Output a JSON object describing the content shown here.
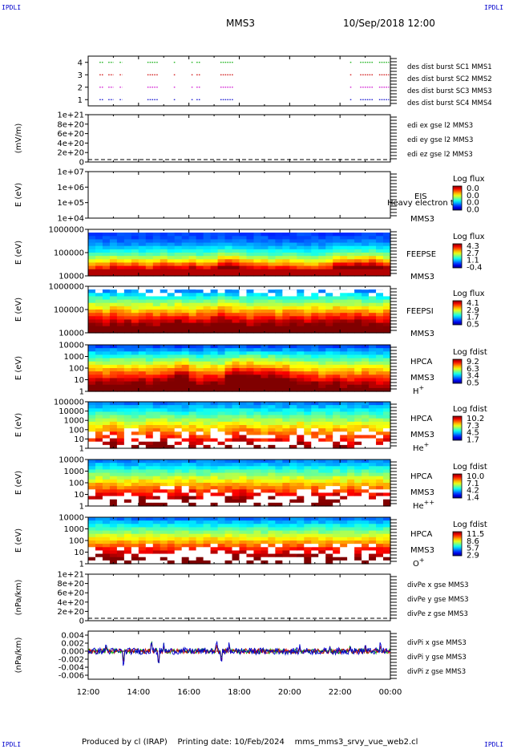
{
  "corner_label": "IPDLI",
  "header": {
    "mission": "MMS3",
    "datetime": "10/Sep/2018 12:00"
  },
  "footer": {
    "produced_by": "Produced by cl (IRAP)",
    "printing_date": "Printing date: 10/Feb/2024",
    "filename": "mms_mms3_srvy_vue_web2.cl"
  },
  "time_axis": {
    "range_hours": [
      12,
      24
    ],
    "tick_labels": [
      "12:00",
      "14:00",
      "16:00",
      "18:00",
      "20:00",
      "22:00",
      "00:00"
    ]
  },
  "colorbars": {
    "eis": {
      "title": "Log flux",
      "ticks": [
        "0.0",
        "0.0",
        "0.0",
        "0.0"
      ]
    },
    "feepse": {
      "title": "Log flux",
      "ticks": [
        "4.3",
        "2.7",
        "1.1",
        "-0.4"
      ]
    },
    "feepsi": {
      "title": "Log flux",
      "ticks": [
        "4.1",
        "2.9",
        "1.7",
        "0.5"
      ]
    },
    "hpca_h": {
      "title": "Log fdist",
      "ticks": [
        "9.2",
        "6.3",
        "3.4",
        "0.5"
      ]
    },
    "hpca_he": {
      "title": "Log fdist",
      "ticks": [
        "10.2",
        "7.3",
        "4.5",
        "1.7"
      ]
    },
    "hpca_hepp": {
      "title": "Log fdist",
      "ticks": [
        "10.0",
        "7.1",
        "4.2",
        "1.4"
      ]
    },
    "hpca_o": {
      "title": "Log fdist",
      "ticks": [
        "11.5",
        "8.6",
        "5.7",
        "2.9"
      ]
    }
  },
  "chart_data": [
    {
      "id": "burst",
      "type": "scatter",
      "ylim": [
        0.5,
        4.5
      ],
      "ytick_labels": [
        "1",
        "2",
        "3",
        "4"
      ],
      "legend": [
        {
          "label": "des dist burst SC1 MMS1",
          "color": "#0000cc",
          "y": 1
        },
        {
          "label": "des dist burst SC2 MMS2",
          "color": "#cc00cc",
          "y": 2
        },
        {
          "label": "des dist burst SC3 MMS3",
          "color": "#cc0000",
          "y": 3
        },
        {
          "label": "des dist burst SC4 MMS4",
          "color": "#00aa00",
          "y": 4
        }
      ],
      "intervals_hours": [
        [
          12.45,
          12.6
        ],
        [
          12.8,
          13.0
        ],
        [
          13.25,
          13.35
        ],
        [
          14.35,
          14.8
        ],
        [
          15.4,
          15.45
        ],
        [
          16.1,
          16.15
        ],
        [
          16.3,
          16.45
        ],
        [
          17.25,
          17.75
        ],
        [
          22.4,
          22.45
        ],
        [
          22.8,
          23.3
        ],
        [
          23.55,
          23.95
        ]
      ]
    },
    {
      "id": "edi_e",
      "type": "line",
      "ylabel": "(mV/m)",
      "ytick_labels": [
        "1e+21",
        "8e+20",
        "6e+20",
        "4e+20",
        "2e+20",
        "0"
      ],
      "legend": [
        {
          "label": "edi ex gse l2 MMS3",
          "color": "#cc0000"
        },
        {
          "label": "edi ey gse l2 MMS3",
          "color": "#00aa00"
        },
        {
          "label": "edi ez gse l2 MMS3",
          "color": "#0000cc"
        }
      ]
    },
    {
      "id": "eis",
      "type": "heatmap",
      "ylabel": "E (eV)",
      "ytick_labels": [
        "1e+07",
        "1e+06",
        "1e+05",
        "1e+04"
      ],
      "labels": [
        "EIS",
        "MMS3"
      ],
      "overlay_text": "Heavy electron tof"
    },
    {
      "id": "feepse",
      "type": "heatmap",
      "ylabel": "E (eV)",
      "ytick_labels": [
        "1000000",
        "100000",
        "10000"
      ],
      "labels": [
        "FEEPSE",
        "MMS3"
      ],
      "intensity": [
        0.4,
        0.5,
        0.45,
        0.6,
        0.55,
        0.5,
        0.55,
        0.5,
        0.45,
        0.55,
        0.6,
        0.55,
        0.5,
        0.55,
        0.6,
        0.5,
        0.5,
        0.55,
        0.75,
        0.8,
        0.75,
        0.6,
        0.55,
        0.5,
        0.5,
        0.45,
        0.5,
        0.55,
        0.5,
        0.45,
        0.4,
        0.4,
        0.45,
        0.5,
        0.7,
        0.75,
        0.7,
        0.8,
        0.75,
        0.8,
        0.7,
        0.6
      ]
    },
    {
      "id": "feepsi",
      "type": "heatmap",
      "ylabel": "E (eV)",
      "ytick_labels": [
        "1000000",
        "100000",
        "10000"
      ],
      "labels": [
        "FEEPSI",
        "MMS3"
      ],
      "intensity": [
        0.6,
        0.6,
        0.55,
        0.65,
        0.6,
        0.6,
        0.55,
        0.6,
        0.6,
        0.55,
        0.6,
        0.6,
        0.65,
        0.6,
        0.55,
        0.6,
        0.6,
        0.65,
        0.7,
        0.65,
        0.6,
        0.6,
        0.55,
        0.6,
        0.6,
        0.6,
        0.55,
        0.6,
        0.6,
        0.6,
        0.55,
        0.6,
        0.6,
        0.6,
        0.65,
        0.65,
        0.6,
        0.65,
        0.6,
        0.6,
        0.55,
        0.6
      ]
    },
    {
      "id": "hpca_h",
      "type": "heatmap",
      "ylabel": "E (eV)",
      "ytick_labels": [
        "10000",
        "1000",
        "100",
        "10",
        "1"
      ],
      "labels": [
        "HPCA",
        "MMS3",
        "H+"
      ],
      "intensity": [
        0.55,
        0.6,
        0.55,
        0.6,
        0.6,
        0.55,
        0.6,
        0.6,
        0.55,
        0.6,
        0.6,
        0.65,
        0.8,
        0.8,
        0.6,
        0.55,
        0.6,
        0.6,
        0.55,
        0.8,
        0.85,
        0.8,
        0.85,
        0.8,
        0.75,
        0.8,
        0.75,
        0.7,
        0.6,
        0.6,
        0.55,
        0.55,
        0.5,
        0.55,
        0.55,
        0.5,
        0.5,
        0.5,
        0.55,
        0.5,
        0.5,
        0.5
      ]
    },
    {
      "id": "hpca_he",
      "type": "heatmap",
      "ylabel": "E (eV)",
      "ytick_labels": [
        "100000",
        "10000",
        "1000",
        "100",
        "10",
        "1"
      ],
      "labels": [
        "HPCA",
        "MMS3",
        "He+"
      ],
      "intensity": [
        0.45,
        0.5,
        0.55,
        0.6,
        0.5,
        0.45,
        0.5,
        0.5,
        0.55,
        0.6,
        0.55,
        0.5,
        0.5,
        0.45,
        0.5,
        0.5,
        0.45,
        0.5,
        0.5,
        0.5,
        0.55,
        0.6,
        0.55,
        0.5,
        0.45,
        0.5,
        0.5,
        0.45,
        0.5,
        0.55,
        0.45,
        0.5,
        0.5,
        0.45,
        0.5,
        0.5,
        0.45,
        0.5,
        0.5,
        0.5,
        0.45,
        0.5
      ]
    },
    {
      "id": "hpca_hepp",
      "type": "heatmap",
      "ylabel": "E (eV)",
      "ytick_labels": [
        "10000",
        "1000",
        "100",
        "10",
        "1"
      ],
      "labels": [
        "HPCA",
        "MMS3",
        "He++"
      ],
      "intensity": [
        0.55,
        0.6,
        0.55,
        0.6,
        0.55,
        0.55,
        0.6,
        0.6,
        0.55,
        0.6,
        0.6,
        0.55,
        0.6,
        0.6,
        0.65,
        0.55,
        0.6,
        0.6,
        0.55,
        0.6,
        0.6,
        0.65,
        0.6,
        0.6,
        0.55,
        0.6,
        0.55,
        0.6,
        0.55,
        0.6,
        0.55,
        0.6,
        0.55,
        0.55,
        0.6,
        0.55,
        0.6,
        0.55,
        0.6,
        0.55,
        0.6,
        0.55
      ]
    },
    {
      "id": "hpca_o",
      "type": "heatmap",
      "ylabel": "E (eV)",
      "ytick_labels": [
        "10000",
        "1000",
        "100",
        "10",
        "1"
      ],
      "labels": [
        "HPCA",
        "MMS3",
        "O+"
      ],
      "intensity": [
        0.6,
        0.62,
        0.6,
        0.62,
        0.6,
        0.62,
        0.6,
        0.62,
        0.6,
        0.62,
        0.6,
        0.62,
        0.6,
        0.62,
        0.6,
        0.62,
        0.6,
        0.62,
        0.6,
        0.62,
        0.6,
        0.62,
        0.6,
        0.62,
        0.6,
        0.62,
        0.6,
        0.62,
        0.6,
        0.62,
        0.6,
        0.62,
        0.6,
        0.62,
        0.6,
        0.62,
        0.6,
        0.62,
        0.6,
        0.62,
        0.6,
        0.62
      ]
    },
    {
      "id": "divpe",
      "type": "line",
      "ylabel": "(nPa/km)",
      "ytick_labels": [
        "1e+21",
        "8e+20",
        "6e+20",
        "4e+20",
        "2e+20",
        "0"
      ],
      "legend": [
        {
          "label": "divPe x gse MMS3",
          "color": "#cc0000"
        },
        {
          "label": "divPe y gse MMS3",
          "color": "#00aa00"
        },
        {
          "label": "divPe z gse MMS3",
          "color": "#0000cc"
        }
      ]
    },
    {
      "id": "divpi",
      "type": "line",
      "ylabel": "(nPa/km)",
      "ylim": [
        -0.007,
        0.005
      ],
      "ytick_labels": [
        "0.004",
        "0.002",
        "0.000",
        "-0.002",
        "-0.004",
        "-0.006"
      ],
      "legend": [
        {
          "label": "divPi x gse MMS3",
          "color": "#cc0000"
        },
        {
          "label": "divPi y gse MMS3",
          "color": "#00aa00"
        },
        {
          "label": "divPi z gse MMS3",
          "color": "#0000cc"
        }
      ],
      "spikes_hours": [
        [
          12.7,
          0.002
        ],
        [
          13.4,
          -0.004
        ],
        [
          14.5,
          0.004
        ],
        [
          14.8,
          -0.005
        ],
        [
          15.0,
          0.003
        ],
        [
          17.1,
          0.003
        ],
        [
          17.3,
          -0.004
        ],
        [
          17.6,
          0.002
        ],
        [
          20.4,
          0.002
        ],
        [
          21.6,
          0.002
        ],
        [
          22.4,
          0.002
        ],
        [
          23.0,
          0.002
        ],
        [
          23.6,
          0.002
        ]
      ]
    }
  ]
}
